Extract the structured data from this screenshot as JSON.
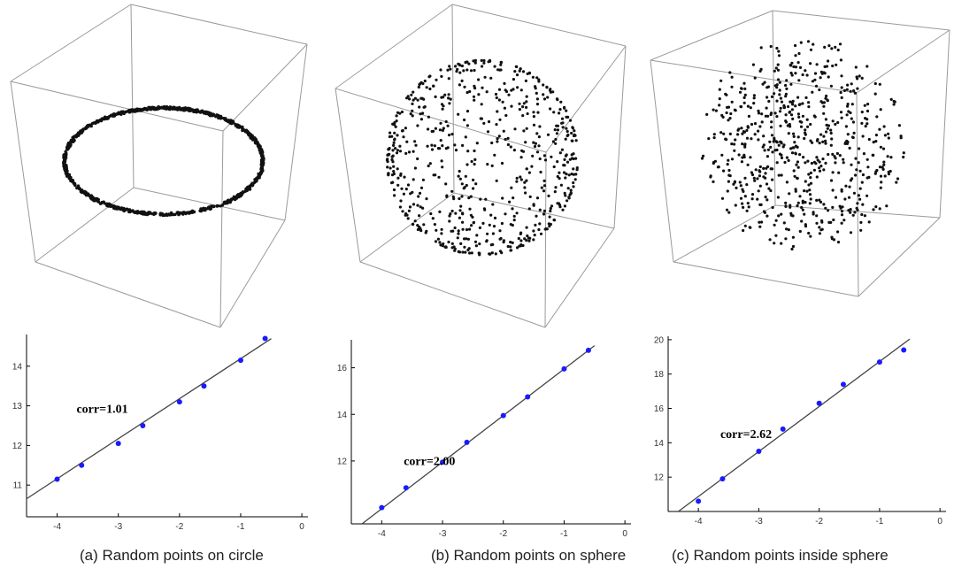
{
  "figure": {
    "panels": [
      {
        "id": "a",
        "caption": "(a) Random points on circle",
        "cloud": "circle",
        "chart_data": {
          "type": "scatter",
          "x": [
            -4,
            -3.6,
            -3,
            -2.6,
            -2,
            -1.6,
            -1,
            -0.6
          ],
          "y": [
            11.15,
            11.5,
            12.05,
            12.5,
            13.1,
            13.5,
            14.15,
            14.7
          ],
          "fit_line": {
            "slope": 1.01,
            "intercept": 15.2
          },
          "annotation": "corr=1.01",
          "xlim": [
            -4.5,
            0.1
          ],
          "ylim": [
            10.2,
            14.8
          ],
          "xticks": [
            -4,
            -3,
            -2,
            -1,
            0
          ],
          "yticks": [
            11,
            12,
            13,
            14
          ],
          "xlabel": "",
          "ylabel": "",
          "title": "",
          "point_color": "#1a1aff"
        }
      },
      {
        "id": "b",
        "caption": "(b) Random points on sphere",
        "cloud": "sphere-surface",
        "chart_data": {
          "type": "scatter",
          "x": [
            -4,
            -3.6,
            -3,
            -2.6,
            -2,
            -1.6,
            -1,
            -0.6
          ],
          "y": [
            10,
            10.85,
            11.95,
            12.8,
            13.95,
            14.75,
            15.95,
            16.75
          ],
          "fit_line": {
            "slope": 2.0,
            "intercept": 17.95
          },
          "annotation": "corr=2.00",
          "xlim": [
            -4.5,
            0.1
          ],
          "ylim": [
            9.3,
            17.2
          ],
          "xticks": [
            -4,
            -3,
            -2,
            -1,
            0
          ],
          "yticks": [
            12,
            14,
            16
          ],
          "xlabel": "",
          "ylabel": "",
          "title": "",
          "point_color": "#1a1aff"
        }
      },
      {
        "id": "c",
        "caption": "(c) Random points inside sphere",
        "cloud": "sphere-volume",
        "chart_data": {
          "type": "scatter",
          "x": [
            -4,
            -3.6,
            -3,
            -2.6,
            -2,
            -1.6,
            -1,
            -0.6
          ],
          "y": [
            10.6,
            11.9,
            13.5,
            14.8,
            16.3,
            17.4,
            18.7,
            19.4
          ],
          "fit_line": {
            "slope": 2.62,
            "intercept": 21.35
          },
          "annotation": "corr=2.62",
          "xlim": [
            -4.5,
            0.1
          ],
          "ylim": [
            10,
            20.2
          ],
          "xticks": [
            -4,
            -3,
            -2,
            -1,
            0
          ],
          "yticks": [
            12,
            14,
            16,
            18,
            20
          ],
          "xlabel": "",
          "ylabel": "",
          "title": "",
          "point_color": "#1a1aff"
        }
      }
    ]
  }
}
